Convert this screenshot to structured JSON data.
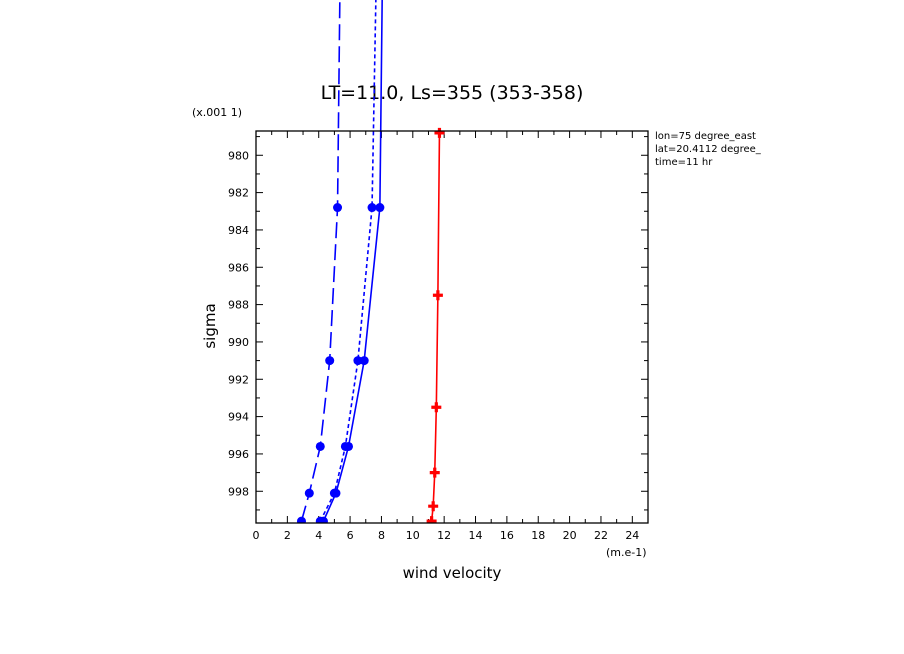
{
  "chart_data": {
    "type": "line",
    "title": "LT=11.0, Ls=355 (353-358)",
    "xlabel": "wind velocity",
    "ylabel": "sigma",
    "x_unit": "(m.e-1)",
    "y_unit": "(x.001 1)",
    "xlim": [
      0,
      25
    ],
    "ylim": [
      999.7,
      978.7
    ],
    "x_ticks": [
      "0",
      "2",
      "4",
      "6",
      "8",
      "10",
      "12",
      "14",
      "16",
      "18",
      "20",
      "22",
      "24"
    ],
    "y_ticks": [
      "980",
      "982",
      "984",
      "986",
      "988",
      "990",
      "992",
      "994",
      "996",
      "998"
    ],
    "annotations": [
      "lon=75 degree_east",
      "lat=20.4112 degree_",
      "time=11 hr"
    ],
    "series": [
      {
        "style": "long-dash",
        "color": "#0000ff",
        "marker": "circle",
        "points": [
          [
            2.9,
            999.6
          ],
          [
            3.4,
            998.1
          ],
          [
            4.1,
            995.6
          ],
          [
            4.7,
            991.0
          ],
          [
            5.2,
            982.8
          ],
          [
            5.5,
            960.0
          ]
        ]
      },
      {
        "style": "short-dash",
        "color": "#0000ff",
        "marker": "circle",
        "points": [
          [
            4.1,
            999.6
          ],
          [
            5.0,
            998.1
          ],
          [
            5.7,
            995.6
          ],
          [
            6.5,
            991.0
          ],
          [
            7.4,
            982.8
          ],
          [
            7.9,
            960.0
          ]
        ]
      },
      {
        "style": "solid",
        "color": "#0000ff",
        "marker": "circle",
        "points": [
          [
            4.3,
            999.6
          ],
          [
            5.1,
            998.1
          ],
          [
            5.9,
            995.6
          ],
          [
            6.9,
            991.0
          ],
          [
            7.9,
            982.8
          ],
          [
            8.2,
            960.0
          ]
        ]
      },
      {
        "style": "solid",
        "color": "#ff0000",
        "marker": "cross",
        "points": [
          [
            11.2,
            999.6
          ],
          [
            11.3,
            998.8
          ],
          [
            11.4,
            997.0
          ],
          [
            11.5,
            993.5
          ],
          [
            11.6,
            987.5
          ],
          [
            11.7,
            978.8
          ]
        ]
      }
    ]
  }
}
